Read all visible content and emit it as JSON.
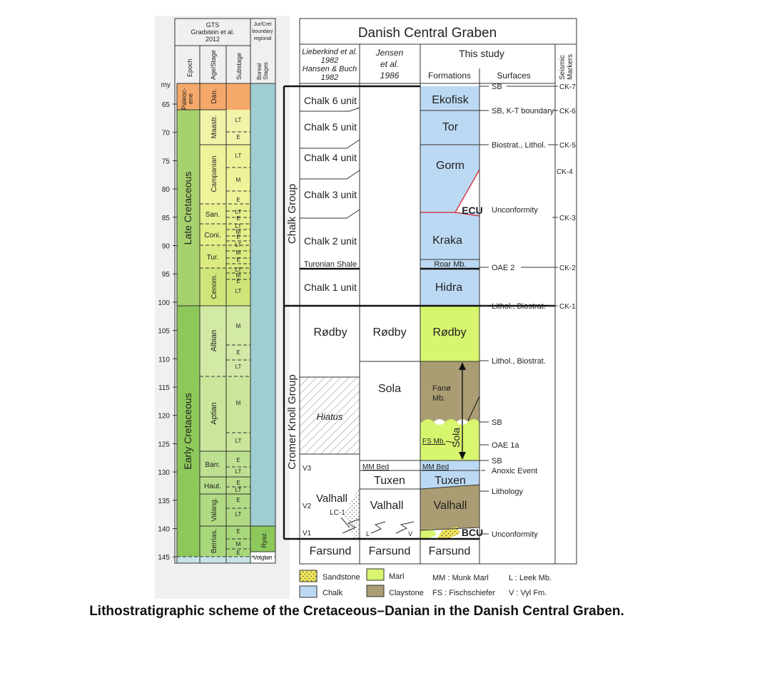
{
  "caption": "Lithostratigraphic scheme of the Cretaceous–Danian in the Danish Central Graben.",
  "left_panel": {
    "header_gts": [
      "GTS",
      "Gradstein et al.",
      "2012"
    ],
    "header_boundary": [
      "Jur/Cret",
      "boundary",
      "regional"
    ],
    "col_epoch": "Epoch",
    "col_age": "Age/Stage",
    "col_substage": "Substage",
    "col_boreal": [
      "Boreal",
      "Stages"
    ],
    "axis_unit": "my",
    "ticks": [
      "65",
      "70",
      "75",
      "80",
      "85",
      "90",
      "95",
      "100",
      "105",
      "110",
      "115",
      "120",
      "125",
      "130",
      "135",
      "140",
      "145"
    ],
    "epochs": [
      {
        "label": "Paleoc-",
        "label2": "ene",
        "color": "#f4a96a"
      },
      {
        "label": "Late Cretaceous",
        "color": "#a6d26d"
      },
      {
        "label": "Early Cretaceous",
        "color": "#8cc85a"
      }
    ],
    "stages": [
      {
        "label": "Dan.",
        "color": "#f4a96a"
      },
      {
        "label": "Maastr.",
        "color": "#f0f3a8"
      },
      {
        "label": "Campanian",
        "color": "#eef39a"
      },
      {
        "label": "San.",
        "color": "#e6f08e"
      },
      {
        "label": "Coni.",
        "color": "#e2ee88"
      },
      {
        "label": "Tur.",
        "color": "#dbeb82"
      },
      {
        "label": "Cenom.",
        "color": "#cfe57a"
      },
      {
        "label": "Albian",
        "color": "#d3e9a6"
      },
      {
        "label": "Aptian",
        "color": "#c9e69b"
      },
      {
        "label": "Barr.",
        "color": "#bde091"
      },
      {
        "label": "Haut.",
        "color": "#b7dd8a"
      },
      {
        "label": "Valang.",
        "color": "#b0da83"
      },
      {
        "label": "Berrias.",
        "color": "#a8d77c"
      }
    ],
    "substages": [
      "LT",
      "E",
      "LT",
      "M",
      "E",
      "LT",
      "E",
      "LT",
      "M",
      "E",
      "LT",
      "M",
      "E",
      "LT",
      "M",
      "E",
      "LT",
      "M",
      "E",
      "LT",
      "M",
      "E",
      "LT",
      "E",
      "LT",
      "E",
      "LT",
      "E",
      "LT",
      "E",
      "LT",
      "M",
      "E"
    ],
    "boreal": [
      {
        "label": "Ryaz.",
        "color": "#8cc85a"
      },
      {
        "label": "Volgian",
        "color": "#ffffff"
      }
    ],
    "boreal_main_color": "#9fced2"
  },
  "right_panel": {
    "title": "Danish Central Graben",
    "col1_header": [
      "Lieberkind et al.",
      "1982",
      "Hansen & Buch",
      "1982"
    ],
    "col2_header": [
      "Jensen",
      "et al.",
      "1986"
    ],
    "col3_header": "This study",
    "formations_header": "Formations",
    "surfaces_header": "Surfaces",
    "markers_header": [
      "Seismic",
      "Markers"
    ],
    "chalk_group": "Chalk Group",
    "cromer_group": "Cromer Knoll Group",
    "lieberkind_units": [
      "Chalk 6 unit",
      "Chalk 5 unit",
      "Chalk 4 unit",
      "Chalk 3 unit",
      "Chalk 2 unit",
      "Turonian Shale",
      "Chalk 1 unit",
      "Rødby",
      "Hiatus",
      "Valhall",
      "LC-1",
      "Farsund"
    ],
    "v_labels": [
      "V3",
      "V2",
      "V1"
    ],
    "jensen_units": [
      "Rødby",
      "Sola",
      "MM Bed",
      "Tuxen",
      "Valhall",
      "L",
      "V",
      "Farsund"
    ],
    "formations": [
      {
        "label": "Ekofisk",
        "color": "#bcd9f3"
      },
      {
        "label": "Tor",
        "color": "#bcd9f3"
      },
      {
        "label": "Gorm",
        "color": "#bcd9f3"
      },
      {
        "label": "ECU"
      },
      {
        "label": "Kraka",
        "color": "#bcd9f3"
      },
      {
        "label": "Roar Mb.",
        "color": "#bcd9f3"
      },
      {
        "label": "Hidra",
        "color": "#bcd9f3"
      },
      {
        "label": "Rødby",
        "color": "#d7f56e"
      },
      {
        "label": "Fanø",
        "label2": "Mb.",
        "color": "#ab9d73"
      },
      {
        "label": "Sola"
      },
      {
        "label": "FS Mb.",
        "color": "#d7f56e"
      },
      {
        "label": "MM Bed",
        "color": "#bcd9f3"
      },
      {
        "label": "Tuxen",
        "color": "#bcd9f3"
      },
      {
        "label": "Valhall",
        "color": "#ab9d73"
      },
      {
        "label": "BCU"
      },
      {
        "label": "Farsund"
      }
    ],
    "surfaces": [
      "SB",
      "SB, K-T boundary",
      "Biostrat., Lithol.",
      "Unconformity",
      "OAE 2",
      "Lithol., Biostrat.",
      "Lithol., Biostrat.",
      "SB",
      "OAE 1a",
      "SB",
      "Anoxic Event",
      "Lithology",
      "Unconformity"
    ],
    "markers": [
      "CK-7",
      "CK-6",
      "CK-5",
      "CK-4",
      "CK-3",
      "CK-2",
      "CK-1"
    ]
  },
  "legend": [
    {
      "label": "Sandstone",
      "color": "#f5e85a"
    },
    {
      "label": "Marl",
      "color": "#d7f56e"
    },
    {
      "label": "MM : Munk Marl"
    },
    {
      "label": "L : Leek Mb."
    },
    {
      "label": "Chalk",
      "color": "#bcd9f3"
    },
    {
      "label": "Claystone",
      "color": "#ab9d73"
    },
    {
      "label": "FS : Fischschiefer"
    },
    {
      "label": "V : Vyl Fm."
    }
  ]
}
